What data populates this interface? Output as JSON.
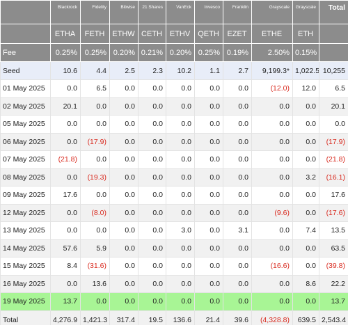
{
  "header": {
    "issuers": [
      "Blackrock",
      "Fidelity",
      "Bitwise",
      "21 Shares",
      "VanEck",
      "Invesco",
      "Franklin",
      "Grayscale",
      "Grayscale",
      "Total"
    ],
    "tickers": [
      "ETHA",
      "FETH",
      "ETHW",
      "CETH",
      "ETHV",
      "QETH",
      "EZET",
      "ETHE",
      "ETH"
    ],
    "fee_label": "Fee",
    "fees": [
      "0.25%",
      "0.25%",
      "0.20%",
      "0.21%",
      "0.20%",
      "0.25%",
      "0.19%",
      "2.50%",
      "0.15%"
    ]
  },
  "rows": [
    {
      "label": "Seed",
      "cells": [
        "10.6",
        "4.4",
        "2.5",
        "2.3",
        "10.2",
        "1.1",
        "2.7",
        "9,199.3*",
        "1,022.5*",
        "10,255"
      ]
    },
    {
      "label": "01 May 2025",
      "cells": [
        "0.0",
        "6.5",
        "0.0",
        "0.0",
        "0.0",
        "0.0",
        "0.0",
        "(12.0)",
        "12.0",
        "6.5"
      ]
    },
    {
      "label": "02 May 2025",
      "cells": [
        "20.1",
        "0.0",
        "0.0",
        "0.0",
        "0.0",
        "0.0",
        "0.0",
        "0.0",
        "0.0",
        "20.1"
      ]
    },
    {
      "label": "05 May 2025",
      "cells": [
        "0.0",
        "0.0",
        "0.0",
        "0.0",
        "0.0",
        "0.0",
        "0.0",
        "0.0",
        "0.0",
        "0.0"
      ]
    },
    {
      "label": "06 May 2025",
      "cells": [
        "0.0",
        "(17.9)",
        "0.0",
        "0.0",
        "0.0",
        "0.0",
        "0.0",
        "0.0",
        "0.0",
        "(17.9)"
      ]
    },
    {
      "label": "07 May 2025",
      "cells": [
        "(21.8)",
        "0.0",
        "0.0",
        "0.0",
        "0.0",
        "0.0",
        "0.0",
        "0.0",
        "0.0",
        "(21.8)"
      ]
    },
    {
      "label": "08 May 2025",
      "cells": [
        "0.0",
        "(19.3)",
        "0.0",
        "0.0",
        "0.0",
        "0.0",
        "0.0",
        "0.0",
        "3.2",
        "(16.1)"
      ]
    },
    {
      "label": "09 May 2025",
      "cells": [
        "17.6",
        "0.0",
        "0.0",
        "0.0",
        "0.0",
        "0.0",
        "0.0",
        "0.0",
        "0.0",
        "17.6"
      ]
    },
    {
      "label": "12 May 2025",
      "cells": [
        "0.0",
        "(8.0)",
        "0.0",
        "0.0",
        "0.0",
        "0.0",
        "0.0",
        "(9.6)",
        "0.0",
        "(17.6)"
      ]
    },
    {
      "label": "13 May 2025",
      "cells": [
        "0.0",
        "0.0",
        "0.0",
        "0.0",
        "3.0",
        "0.0",
        "3.1",
        "0.0",
        "7.4",
        "13.5"
      ]
    },
    {
      "label": "14 May 2025",
      "cells": [
        "57.6",
        "5.9",
        "0.0",
        "0.0",
        "0.0",
        "0.0",
        "0.0",
        "0.0",
        "0.0",
        "63.5"
      ]
    },
    {
      "label": "15 May 2025",
      "cells": [
        "8.4",
        "(31.6)",
        "0.0",
        "0.0",
        "0.0",
        "0.0",
        "0.0",
        "(16.6)",
        "0.0",
        "(39.8)"
      ]
    },
    {
      "label": "16 May 2025",
      "cells": [
        "0.0",
        "13.6",
        "0.0",
        "0.0",
        "0.0",
        "0.0",
        "0.0",
        "0.0",
        "8.6",
        "22.2"
      ]
    },
    {
      "label": "19 May 2025",
      "cells": [
        "13.7",
        "0.0",
        "0.0",
        "0.0",
        "0.0",
        "0.0",
        "0.0",
        "0.0",
        "0.0",
        "13.7"
      ]
    },
    {
      "label": "Total",
      "cells": [
        "4,276.9",
        "1,421.3",
        "317.4",
        "19.5",
        "136.6",
        "21.4",
        "39.6",
        "(4,328.8)",
        "639.5",
        "2,543.4"
      ]
    }
  ]
}
